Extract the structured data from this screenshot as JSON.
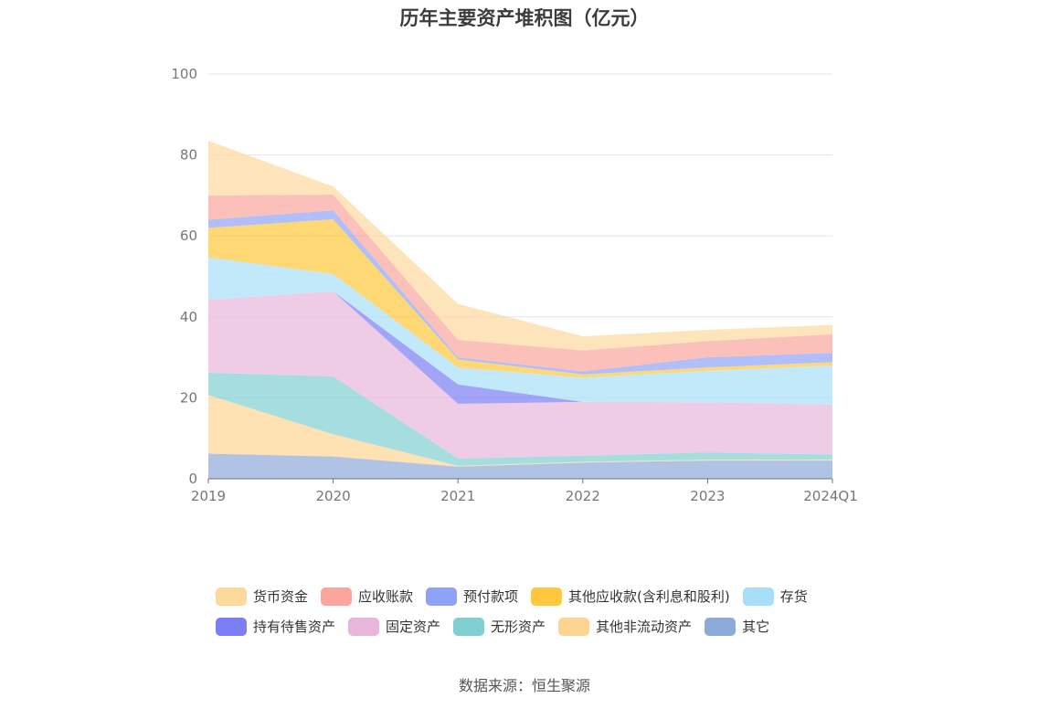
{
  "chart_data": {
    "type": "area",
    "stacked": true,
    "title": "历年主要资产堆积图（亿元）",
    "categories": [
      "2019",
      "2020",
      "2021",
      "2022",
      "2023",
      "2024Q1"
    ],
    "ylim": [
      0,
      100
    ],
    "yticks": [
      0,
      20,
      40,
      60,
      80,
      100
    ],
    "grid": true,
    "legend_position": "bottom",
    "series": [
      {
        "name": "其它",
        "color": "#8eaad8",
        "values": [
          6.2,
          5.5,
          3.0,
          4.0,
          4.5,
          4.5
        ]
      },
      {
        "name": "其他非流动资产",
        "color": "#fdd593",
        "values": [
          14.5,
          5.5,
          0.2,
          0.2,
          0.2,
          0.2
        ]
      },
      {
        "name": "无形资产",
        "color": "#80d0d2",
        "values": [
          5.5,
          14.3,
          1.8,
          1.5,
          1.8,
          1.3
        ]
      },
      {
        "name": "固定资产",
        "color": "#e8b6da",
        "values": [
          18.0,
          21.0,
          13.5,
          13.3,
          12.4,
          12.3
        ]
      },
      {
        "name": "持有待售资产",
        "color": "#7b7ef4",
        "values": [
          0.0,
          0.0,
          4.8,
          0.0,
          0.0,
          0.0
        ]
      },
      {
        "name": "存货",
        "color": "#a8dff8",
        "values": [
          10.5,
          4.3,
          4.2,
          6.0,
          7.8,
          9.7
        ]
      },
      {
        "name": "其他应收款(含利息和股利)",
        "color": "#ffc83c",
        "values": [
          7.3,
          13.5,
          2.0,
          0.8,
          0.8,
          0.8
        ]
      },
      {
        "name": "预付款项",
        "color": "#8ea2f8",
        "values": [
          2.0,
          2.2,
          0.5,
          0.7,
          2.5,
          2.3
        ]
      },
      {
        "name": "应收账款",
        "color": "#fba59d",
        "values": [
          6.0,
          3.9,
          4.3,
          5.2,
          4.0,
          4.6
        ]
      },
      {
        "name": "货币资金",
        "color": "#fed99c",
        "values": [
          13.5,
          2.0,
          8.9,
          3.5,
          2.8,
          2.3
        ]
      }
    ],
    "legend_order": [
      "货币资金",
      "应收账款",
      "预付款项",
      "其他应收款(含利息和股利)",
      "存货",
      "持有待售资产",
      "固定资产",
      "无形资产",
      "其他非流动资产",
      "其它"
    ]
  },
  "source_text": "数据来源：恒生聚源"
}
